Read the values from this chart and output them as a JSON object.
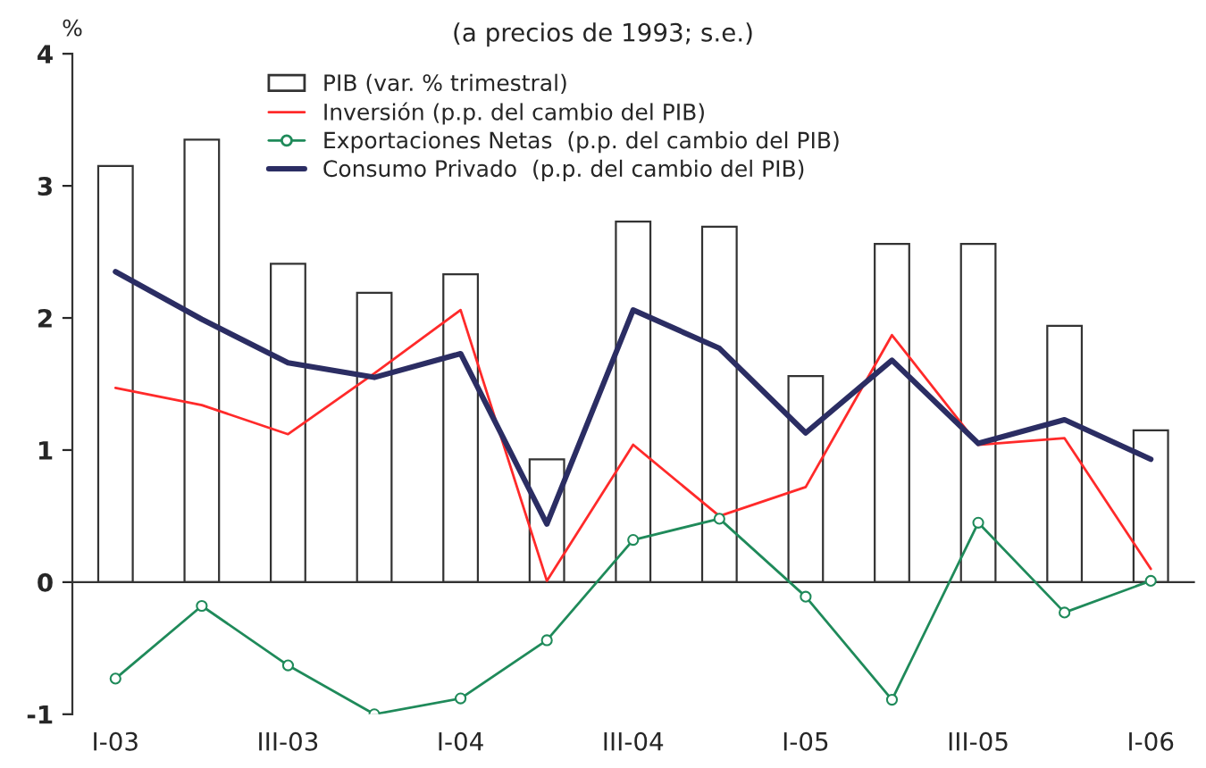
{
  "chart_data": {
    "type": "bar",
    "subtitle": "(a precios de 1993; s.e.)",
    "ylabel": "%",
    "categories": [
      "I-03",
      null,
      "III-03",
      null,
      "I-04",
      null,
      "III-04",
      null,
      "I-05",
      null,
      "III-05",
      null,
      "I-06"
    ],
    "series": [
      {
        "name": "PIB (var. % trimestral)",
        "color": "#ffffff",
        "values": [
          3.15,
          3.35,
          2.41,
          2.19,
          2.33,
          0.93,
          2.73,
          2.69,
          1.56,
          2.56,
          2.56,
          1.94,
          1.15
        ]
      },
      {
        "name": "Inversión (p.p. del cambio del PIB)",
        "type": "line",
        "color": "#ff2a2a",
        "marker": "none",
        "values": [
          1.47,
          1.34,
          1.12,
          1.58,
          2.06,
          0.01,
          1.04,
          0.5,
          0.72,
          1.87,
          1.04,
          1.09,
          0.1
        ]
      },
      {
        "name": "Exportaciones Netas  (p.p. del cambio del PIB)",
        "type": "line",
        "color": "#1f8a5a",
        "marker": "circle",
        "values": [
          -0.73,
          -0.18,
          -0.63,
          -1.0,
          -0.88,
          -0.44,
          0.32,
          0.48,
          -0.11,
          -0.89,
          0.45,
          -0.23,
          0.01
        ]
      },
      {
        "name": "Consumo Privado  (p.p. del cambio del PIB)",
        "type": "line",
        "color": "#2b2d63",
        "marker": "none",
        "values": [
          2.35,
          1.99,
          1.66,
          1.55,
          1.73,
          0.44,
          2.06,
          1.77,
          1.13,
          1.68,
          1.05,
          1.23,
          0.93
        ]
      }
    ],
    "ylim": [
      -1,
      4
    ],
    "yticks": [
      -1,
      0,
      1,
      2,
      3,
      4
    ],
    "legend": "top",
    "line_style": "solid"
  }
}
